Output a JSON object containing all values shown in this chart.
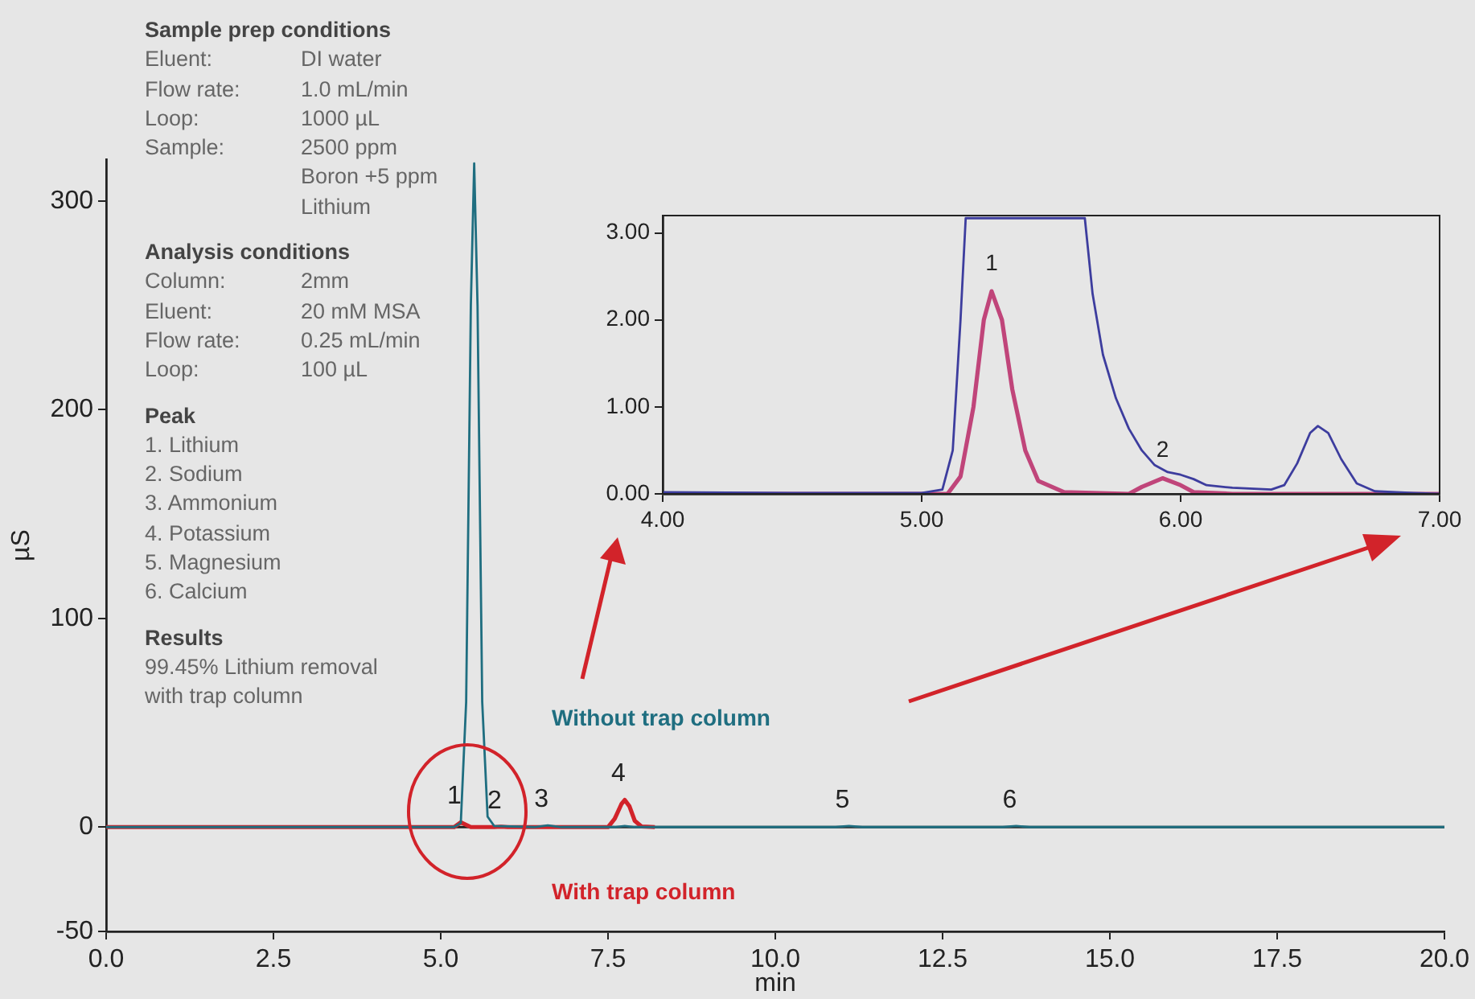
{
  "chart_data": [
    {
      "type": "line",
      "xlabel": "min",
      "ylabel": "µS",
      "marker": "none",
      "xlim": [
        0,
        20
      ],
      "ylim": [
        -50,
        320
      ],
      "xticks": [
        {
          "value": 0,
          "label": "0.0"
        },
        {
          "value": 2.5,
          "label": "2.5"
        },
        {
          "value": 5,
          "label": "5.0"
        },
        {
          "value": 7.5,
          "label": "7.5"
        },
        {
          "value": 10,
          "label": "10.0"
        },
        {
          "value": 12.5,
          "label": "12.5"
        },
        {
          "value": 15,
          "label": "15.0"
        },
        {
          "value": 17.5,
          "label": "17.5"
        },
        {
          "value": 20,
          "label": "20.0"
        }
      ],
      "yticks": [
        -50,
        0,
        100,
        200,
        300
      ],
      "ref_lines": [
        {
          "axis": "y",
          "value": 0,
          "color": "#222222"
        }
      ],
      "series": [
        {
          "name": "Without trap column",
          "color": "#1f6e80",
          "x": [
            0,
            5.2,
            5.3,
            5.38,
            5.45,
            5.5,
            5.55,
            5.62,
            5.7,
            5.8,
            6.4,
            6.6,
            6.8,
            7.6,
            7.75,
            7.9,
            10.9,
            11.1,
            11.3,
            13.4,
            13.6,
            13.8,
            20
          ],
          "values": [
            0,
            0,
            2,
            60,
            250,
            318,
            250,
            60,
            5,
            0.5,
            0,
            0.8,
            0,
            0,
            0.5,
            0,
            0,
            0.5,
            0,
            0,
            0.5,
            0,
            0
          ]
        },
        {
          "name": "With trap column",
          "color": "#d2232a",
          "x": [
            0,
            5.2,
            5.3,
            5.45,
            5.8,
            5.9,
            6.0,
            7.5,
            7.6,
            7.7,
            7.75,
            7.82,
            7.9,
            8.0,
            8.2
          ],
          "values": [
            0,
            0,
            2.3,
            0,
            0,
            0.2,
            0,
            0,
            4,
            11,
            13,
            10,
            3,
            0.3,
            0
          ]
        }
      ],
      "annotations": [
        "Sample prep conditions\nEluent:\tDI water\nFlow rate:\t1.0 mL/min\nLoop:\t1000 µL\nSample:\t2500 ppm\n\tBoron +5 ppm\n\tLithium",
        "Analysis conditions\nColumn:\t2mm\nEluent:\t20 mM MSA\nFlow rate:\t0.25 mL/min\nLoop:\t100 µL",
        "Peak\n1. Lithium\n2. Sodium\n3. Ammonium\n4. Potassium\n5. Magnesium\n6. Calcium",
        "Results\n99.45% Lithium removal\nwith trap column",
        {
          "text": "1",
          "x": 5.3,
          "y": 2.3
        },
        {
          "text": "2",
          "x": 5.9,
          "y": 0.2
        },
        {
          "text": "3",
          "x": 6.6,
          "y": 0.8
        },
        {
          "text": "4",
          "x": 7.75,
          "y": 13
        },
        {
          "text": "5",
          "x": 11.1,
          "y": 0.5
        },
        {
          "text": "6",
          "x": 13.6,
          "y": 0.5
        }
      ]
    },
    {
      "type": "line",
      "marker": "none",
      "xlim": [
        4,
        7
      ],
      "ylim": [
        0,
        3.2
      ],
      "xticks": [
        {
          "value": 4,
          "label": "4.00"
        },
        {
          "value": 5,
          "label": "5.00"
        },
        {
          "value": 6,
          "label": "6.00"
        },
        {
          "value": 7,
          "label": "7.00"
        }
      ],
      "yticks": [
        {
          "value": 0,
          "label": "0.00"
        },
        {
          "value": 1,
          "label": "1.00"
        },
        {
          "value": 2,
          "label": "2.00"
        },
        {
          "value": 3,
          "label": "3.00"
        }
      ],
      "series": [
        {
          "color": "#3d3d9e",
          "x": [
            4,
            4.5,
            5,
            5.08,
            5.12,
            5.15,
            5.17,
            5.63,
            5.66,
            5.7,
            5.75,
            5.8,
            5.85,
            5.9,
            5.95,
            6,
            6.05,
            6.1,
            6.2,
            6.35,
            6.4,
            6.45,
            6.5,
            6.53,
            6.57,
            6.62,
            6.68,
            6.75,
            6.9,
            7
          ],
          "values": [
            0.02,
            0.01,
            0.01,
            0.05,
            0.5,
            2,
            3.17,
            3.17,
            2.3,
            1.6,
            1.1,
            0.75,
            0.5,
            0.33,
            0.25,
            0.22,
            0.17,
            0.1,
            0.07,
            0.05,
            0.1,
            0.35,
            0.7,
            0.78,
            0.7,
            0.4,
            0.12,
            0.03,
            0.01,
            0
          ]
        },
        {
          "color": "#c0457a",
          "x": [
            4,
            5.1,
            5.15,
            5.2,
            5.24,
            5.27,
            5.31,
            5.35,
            5.4,
            5.45,
            5.55,
            5.8,
            5.85,
            5.93,
            6,
            6.05,
            6.2,
            7
          ],
          "values": [
            0,
            0,
            0.2,
            1,
            2,
            2.33,
            2,
            1.2,
            0.5,
            0.15,
            0.02,
            0,
            0.08,
            0.18,
            0.1,
            0.02,
            0,
            0
          ]
        }
      ],
      "annotations": [
        {
          "text": "1",
          "x": 5.27,
          "y": 2.33
        },
        {
          "text": "2",
          "x": 5.93,
          "y": 0.18
        }
      ]
    }
  ]
}
